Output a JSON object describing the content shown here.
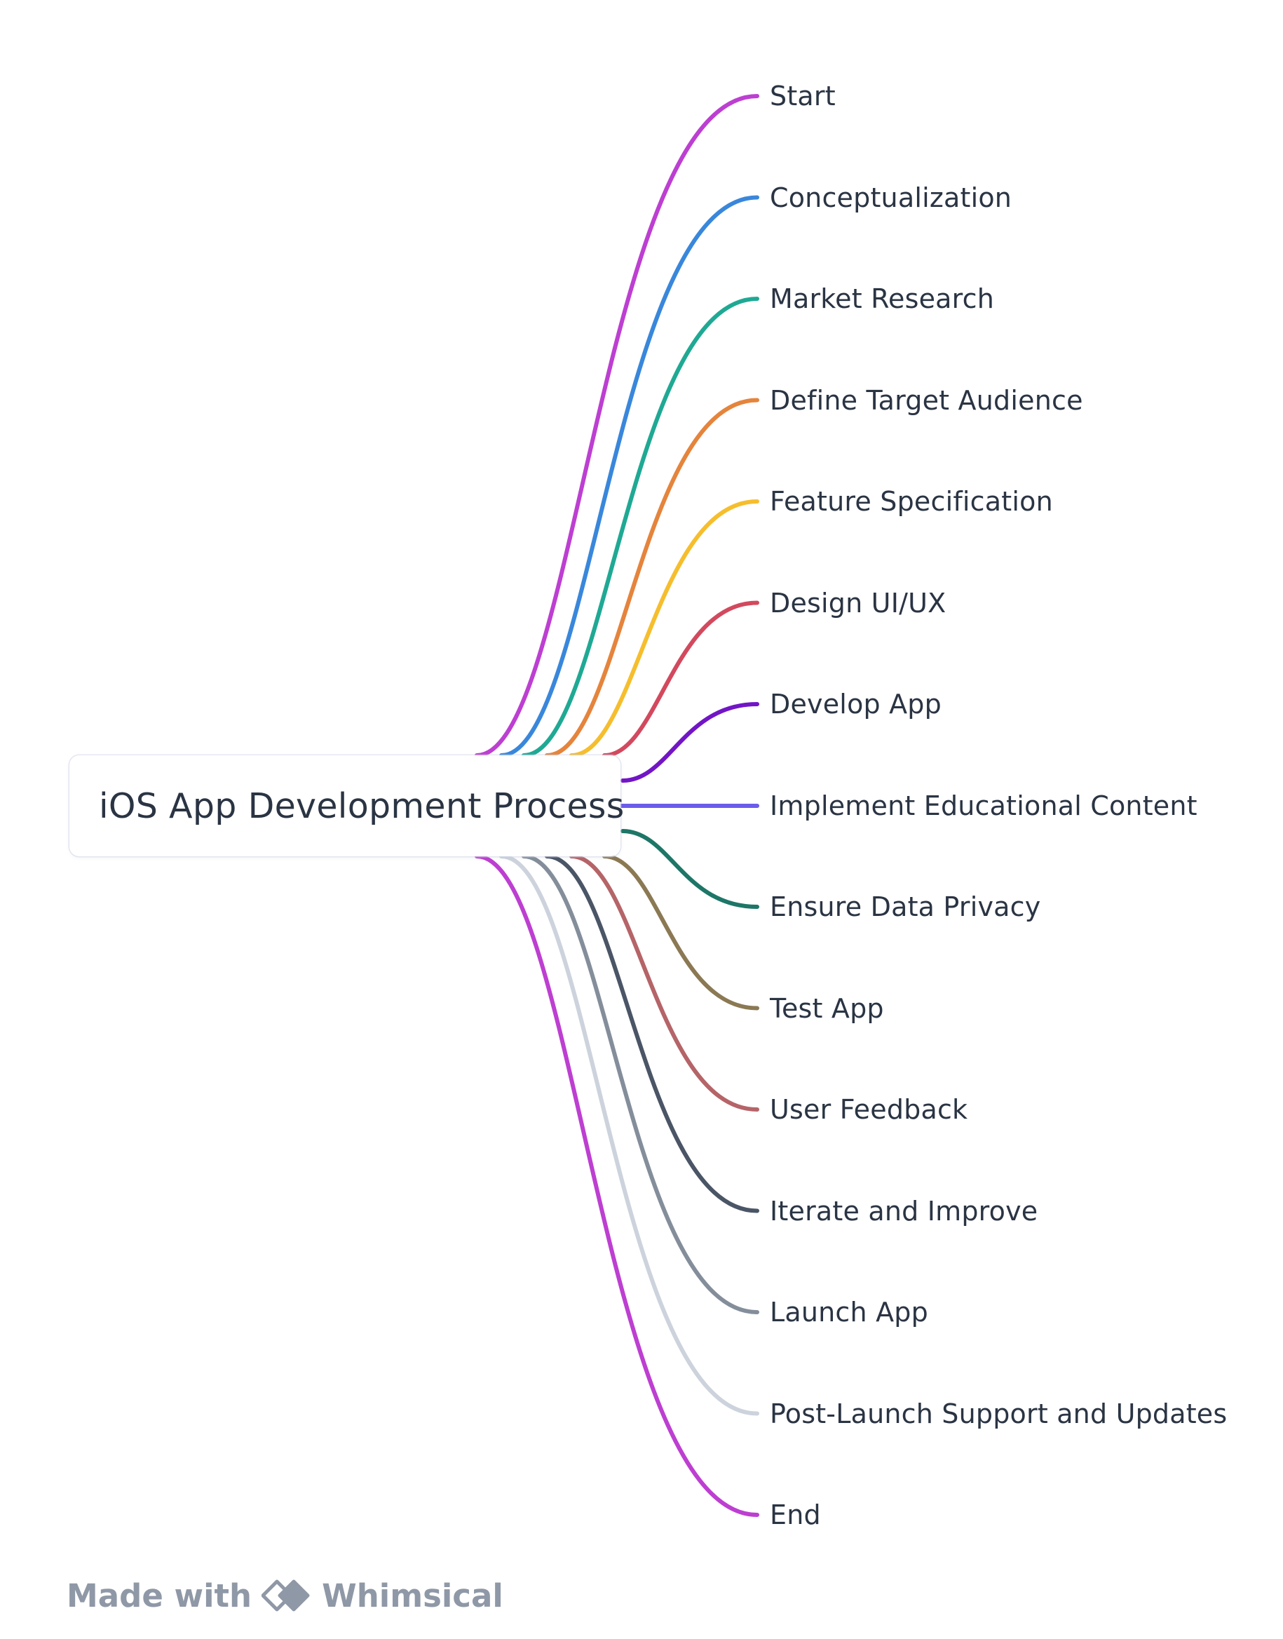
{
  "diagram": {
    "root": {
      "label": "iOS App Development Process"
    },
    "branches": [
      {
        "label": "Start",
        "color": "#BD3FD1"
      },
      {
        "label": "Conceptualization",
        "color": "#3987DB"
      },
      {
        "label": "Market Research",
        "color": "#1FA994"
      },
      {
        "label": "Define Target Audience",
        "color": "#E5843C"
      },
      {
        "label": "Feature Specification",
        "color": "#F6BE2D"
      },
      {
        "label": "Design UI/UX",
        "color": "#D2495E"
      },
      {
        "label": "Develop App",
        "color": "#7215C6"
      },
      {
        "label": "Implement Educational Content",
        "color": "#6B5CEA"
      },
      {
        "label": "Ensure Data Privacy",
        "color": "#1D7667"
      },
      {
        "label": "Test App",
        "color": "#8B7954"
      },
      {
        "label": "User Feedback",
        "color": "#B56468"
      },
      {
        "label": "Iterate and Improve",
        "color": "#4A5566"
      },
      {
        "label": "Launch App",
        "color": "#848E9B"
      },
      {
        "label": "Post-Launch Support and Updates",
        "color": "#CDD3DC"
      },
      {
        "label": "End",
        "color": "#BD3FD1"
      }
    ]
  },
  "footer": {
    "made_with": "Made with",
    "brand": "Whimsical",
    "brand_icon": "whimsical-logo-icon",
    "color": "#8F98A6"
  }
}
